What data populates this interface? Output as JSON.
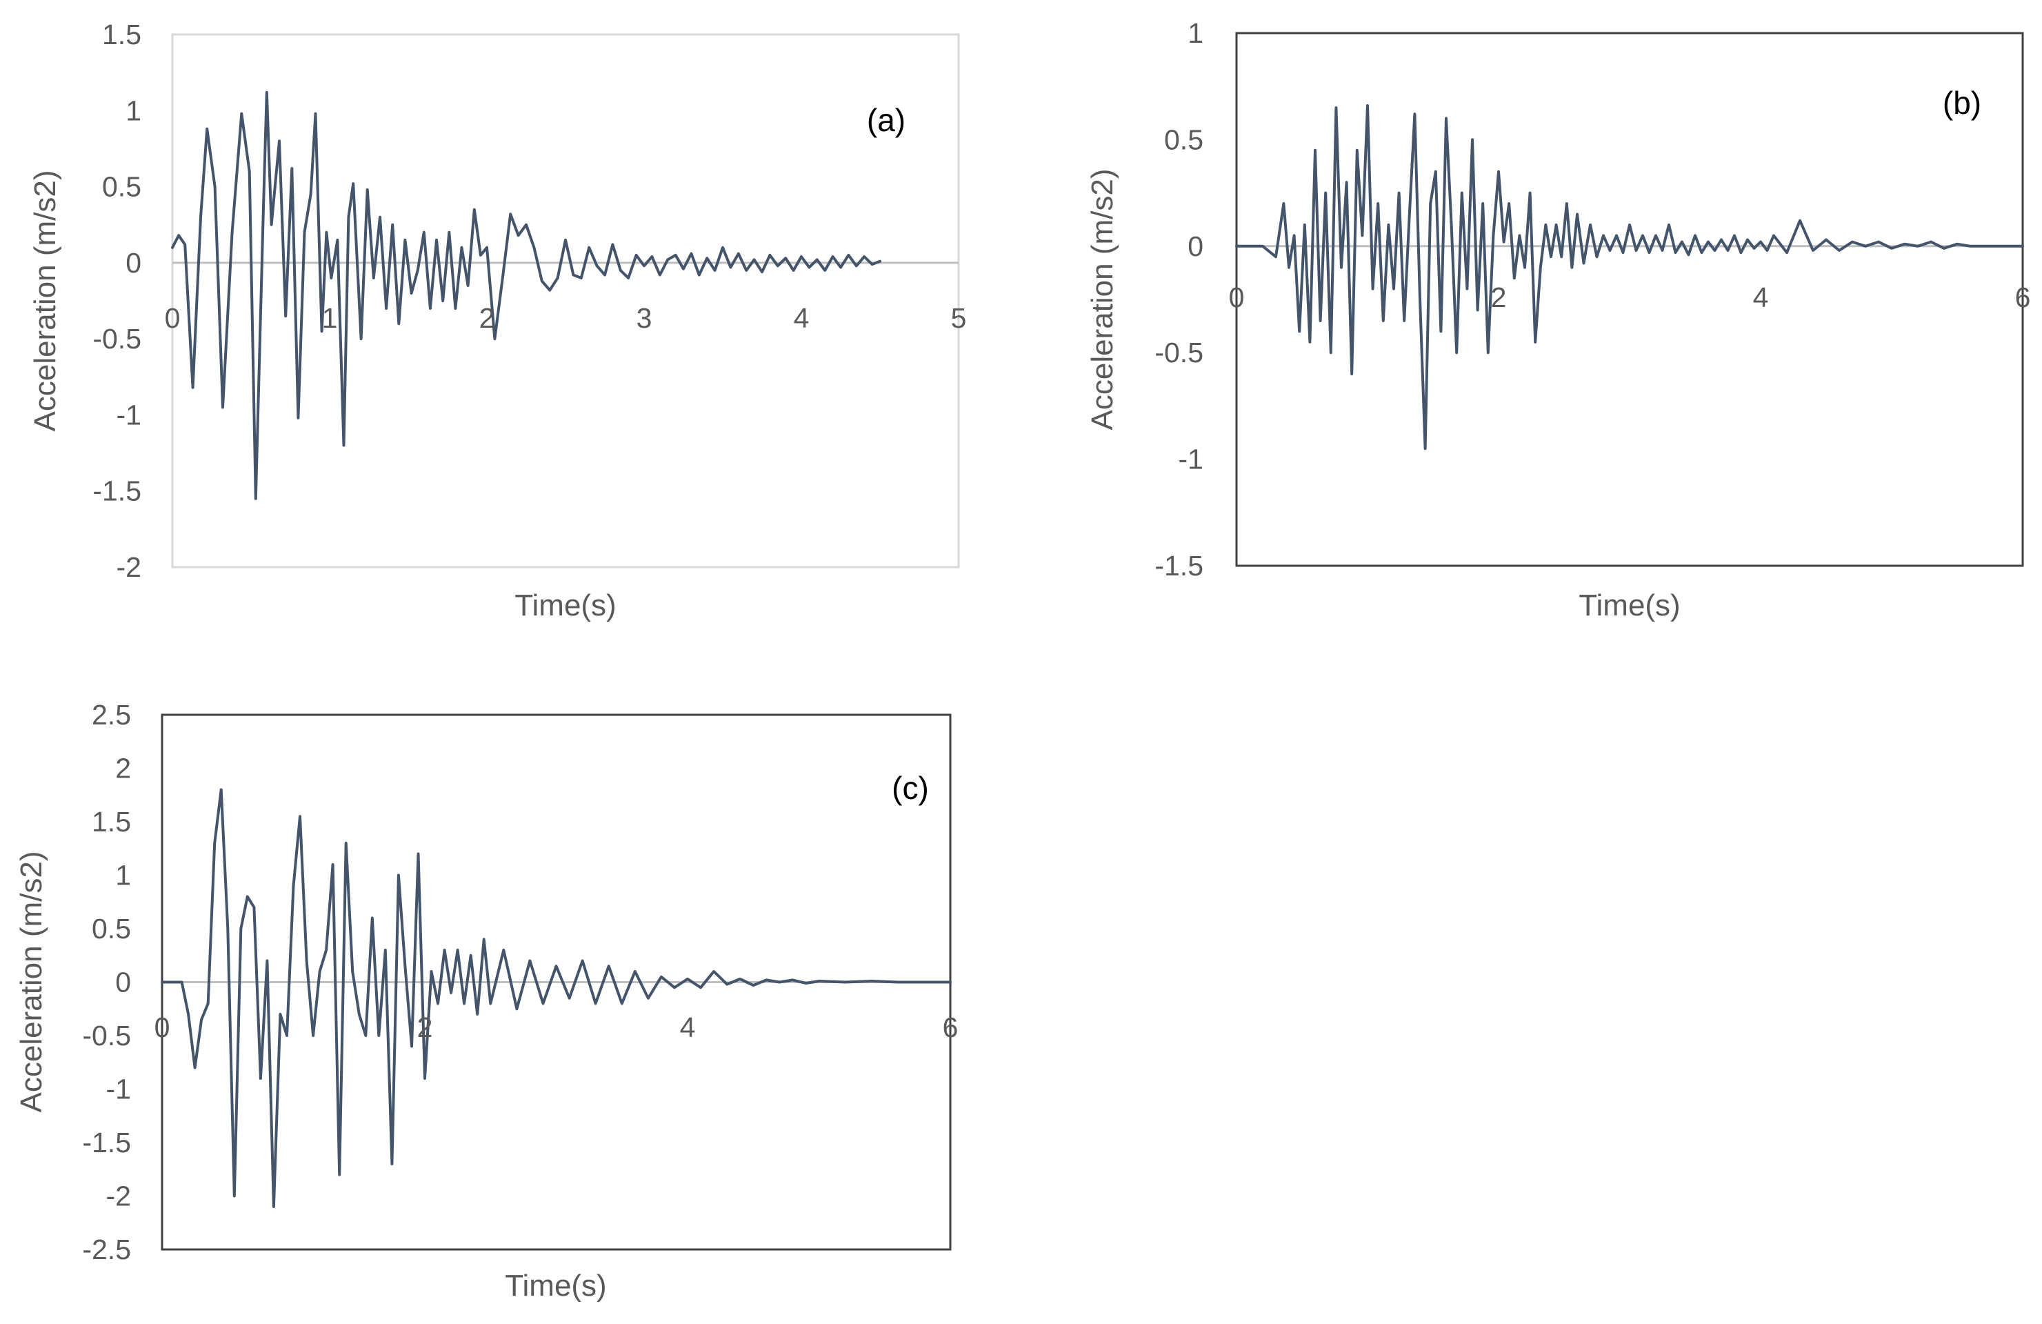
{
  "colors": {
    "series": "#44546a",
    "axis": "#bfbfbf",
    "frame_light": "#d9d9d9",
    "frame_dark": "#404040",
    "text": "#595959"
  },
  "chart_data": [
    {
      "type": "line",
      "panel_label": "(a)",
      "xlabel": "Time(s)",
      "ylabel": "Acceleration (m/s2)",
      "xlim": [
        0,
        5
      ],
      "ylim": [
        -2,
        1.5
      ],
      "x_ticks": [
        "0",
        "1",
        "2",
        "3",
        "4",
        "5"
      ],
      "y_ticks": [
        "1.5",
        "1",
        "0.5",
        "0",
        "-0.5",
        "-1",
        "-1.5",
        "-2"
      ],
      "x_tick_values": [
        0,
        1,
        2,
        3,
        4,
        5
      ],
      "y_tick_values": [
        1.5,
        1,
        0.5,
        0,
        -0.5,
        -1,
        -1.5,
        -2
      ],
      "series": [
        {
          "name": "Acceleration",
          "x": [
            0,
            0.04,
            0.08,
            0.13,
            0.18,
            0.22,
            0.27,
            0.32,
            0.38,
            0.44,
            0.49,
            0.53,
            0.58,
            0.6,
            0.63,
            0.68,
            0.72,
            0.76,
            0.8,
            0.84,
            0.88,
            0.91,
            0.95,
            0.98,
            1.01,
            1.05,
            1.09,
            1.12,
            1.15,
            1.2,
            1.24,
            1.28,
            1.32,
            1.36,
            1.4,
            1.44,
            1.48,
            1.52,
            1.56,
            1.6,
            1.64,
            1.68,
            1.72,
            1.76,
            1.8,
            1.84,
            1.88,
            1.92,
            1.96,
            2,
            2.05,
            2.1,
            2.15,
            2.2,
            2.25,
            2.3,
            2.35,
            2.4,
            2.45,
            2.5,
            2.55,
            2.6,
            2.65,
            2.7,
            2.75,
            2.8,
            2.85,
            2.9,
            2.95,
            3,
            3.05,
            3.1,
            3.15,
            3.2,
            3.25,
            3.3,
            3.35,
            3.4,
            3.45,
            3.5,
            3.55,
            3.6,
            3.65,
            3.7,
            3.75,
            3.8,
            3.85,
            3.9,
            3.95,
            4,
            4.05,
            4.1,
            4.15,
            4.2,
            4.25,
            4.3,
            4.35,
            4.4,
            4.45,
            4.5
          ],
          "values": [
            0.1,
            0.18,
            0.12,
            -0.82,
            0.3,
            0.88,
            0.5,
            -0.95,
            0.2,
            0.98,
            0.6,
            -1.55,
            0.4,
            1.12,
            0.25,
            0.8,
            -0.35,
            0.62,
            -1.02,
            0.2,
            0.45,
            0.98,
            -0.45,
            0.2,
            -0.1,
            0.15,
            -1.2,
            0.3,
            0.52,
            -0.5,
            0.48,
            -0.1,
            0.3,
            -0.3,
            0.25,
            -0.4,
            0.15,
            -0.2,
            -0.05,
            0.2,
            -0.3,
            0.15,
            -0.25,
            0.2,
            -0.3,
            0.1,
            -0.15,
            0.35,
            0.05,
            0.1,
            -0.5,
            -0.1,
            0.32,
            0.18,
            0.25,
            0.1,
            -0.12,
            -0.18,
            -0.1,
            0.15,
            -0.08,
            -0.1,
            0.1,
            -0.02,
            -0.08,
            0.12,
            -0.05,
            -0.1,
            0.05,
            -0.02,
            0.04,
            -0.08,
            0.02,
            0.05,
            -0.04,
            0.06,
            -0.08,
            0.03,
            -0.05,
            0.1,
            -0.03,
            0.06,
            -0.05,
            0.02,
            -0.06,
            0.05,
            -0.02,
            0.03,
            -0.05,
            0.04,
            -0.03,
            0.02,
            -0.05,
            0.04,
            -0.03,
            0.05,
            -0.02,
            0.04,
            -0.01,
            0.01
          ]
        }
      ]
    },
    {
      "type": "line",
      "panel_label": "(b)",
      "xlabel": "Time(s)",
      "ylabel": "Acceleration (m/s2)",
      "xlim": [
        0,
        6
      ],
      "ylim": [
        -1.5,
        1
      ],
      "x_ticks": [
        "0",
        "2",
        "4",
        "6"
      ],
      "y_ticks": [
        "1",
        "0.5",
        "0",
        "-0.5",
        "-1",
        "-1.5"
      ],
      "x_tick_values": [
        0,
        2,
        4,
        6
      ],
      "y_tick_values": [
        1,
        0.5,
        0,
        -0.5,
        -1,
        -1.5
      ],
      "series": [
        {
          "name": "Acceleration",
          "x": [
            0,
            0.2,
            0.3,
            0.36,
            0.4,
            0.44,
            0.48,
            0.52,
            0.56,
            0.6,
            0.64,
            0.68,
            0.72,
            0.76,
            0.8,
            0.84,
            0.88,
            0.92,
            0.96,
            1,
            1.04,
            1.08,
            1.12,
            1.16,
            1.2,
            1.24,
            1.28,
            1.32,
            1.36,
            1.4,
            1.44,
            1.48,
            1.52,
            1.56,
            1.6,
            1.64,
            1.68,
            1.72,
            1.76,
            1.8,
            1.84,
            1.88,
            1.92,
            1.96,
            2,
            2.04,
            2.08,
            2.12,
            2.16,
            2.2,
            2.24,
            2.28,
            2.32,
            2.36,
            2.4,
            2.44,
            2.48,
            2.52,
            2.56,
            2.6,
            2.65,
            2.7,
            2.75,
            2.8,
            2.85,
            2.9,
            2.95,
            3,
            3.05,
            3.1,
            3.15,
            3.2,
            3.25,
            3.3,
            3.35,
            3.4,
            3.45,
            3.5,
            3.55,
            3.6,
            3.65,
            3.7,
            3.75,
            3.8,
            3.85,
            3.9,
            3.95,
            4,
            4.05,
            4.1,
            4.2,
            4.3,
            4.4,
            4.5,
            4.6,
            4.7,
            4.8,
            4.9,
            5,
            5.1,
            5.2,
            5.3,
            5.4,
            5.5,
            5.6,
            5.8,
            6
          ],
          "values": [
            0,
            0,
            -0.05,
            0.2,
            -0.1,
            0.05,
            -0.4,
            0.1,
            -0.45,
            0.45,
            -0.35,
            0.25,
            -0.5,
            0.65,
            -0.1,
            0.3,
            -0.6,
            0.45,
            0.05,
            0.66,
            -0.2,
            0.2,
            -0.35,
            0.1,
            -0.2,
            0.25,
            -0.35,
            0.15,
            0.62,
            -0.25,
            -0.95,
            0.2,
            0.35,
            -0.4,
            0.6,
            0.1,
            -0.5,
            0.25,
            -0.2,
            0.5,
            -0.3,
            0.2,
            -0.5,
            0.05,
            0.35,
            0.02,
            0.2,
            -0.15,
            0.05,
            -0.1,
            0.25,
            -0.45,
            -0.1,
            0.1,
            -0.05,
            0.1,
            -0.05,
            0.2,
            -0.1,
            0.15,
            -0.08,
            0.1,
            -0.05,
            0.05,
            -0.02,
            0.05,
            -0.03,
            0.1,
            -0.02,
            0.05,
            -0.03,
            0.05,
            -0.02,
            0.1,
            -0.03,
            0.02,
            -0.04,
            0.05,
            -0.03,
            0.02,
            -0.02,
            0.03,
            -0.02,
            0.05,
            -0.03,
            0.03,
            -0.01,
            0.02,
            -0.02,
            0.05,
            -0.03,
            0.12,
            -0.02,
            0.03,
            -0.02,
            0.02,
            0,
            0.02,
            -0.01,
            0.01,
            0,
            0.02,
            -0.01,
            0.01,
            0,
            0,
            0
          ]
        }
      ]
    },
    {
      "type": "line",
      "panel_label": "(c)",
      "xlabel": "Time(s)",
      "ylabel": "Acceleration (m/s2)",
      "xlim": [
        0,
        6
      ],
      "ylim": [
        -2.5,
        2.5
      ],
      "x_ticks": [
        "0",
        "2",
        "4",
        "6"
      ],
      "y_ticks": [
        "2.5",
        "2",
        "1.5",
        "1",
        "0.5",
        "0",
        "-0.5",
        "-1",
        "-1.5",
        "-2",
        "-2.5"
      ],
      "x_tick_values": [
        0,
        2,
        4,
        6
      ],
      "y_tick_values": [
        2.5,
        2,
        1.5,
        1,
        0.5,
        0,
        -0.5,
        -1,
        -1.5,
        -2,
        -2.5
      ],
      "series": [
        {
          "name": "Acceleration",
          "x": [
            0,
            0.15,
            0.2,
            0.25,
            0.3,
            0.35,
            0.4,
            0.45,
            0.5,
            0.55,
            0.6,
            0.65,
            0.7,
            0.75,
            0.8,
            0.85,
            0.9,
            0.95,
            1,
            1.05,
            1.1,
            1.15,
            1.2,
            1.25,
            1.3,
            1.35,
            1.4,
            1.45,
            1.5,
            1.55,
            1.6,
            1.65,
            1.7,
            1.75,
            1.8,
            1.85,
            1.9,
            1.95,
            2,
            2.05,
            2.1,
            2.15,
            2.2,
            2.25,
            2.3,
            2.35,
            2.4,
            2.45,
            2.5,
            2.6,
            2.7,
            2.8,
            2.9,
            3,
            3.1,
            3.2,
            3.3,
            3.4,
            3.5,
            3.6,
            3.7,
            3.8,
            3.9,
            4,
            4.1,
            4.2,
            4.3,
            4.4,
            4.5,
            4.6,
            4.7,
            4.8,
            4.9,
            5,
            5.2,
            5.4,
            5.6,
            5.8,
            6
          ],
          "values": [
            0,
            0,
            -0.3,
            -0.8,
            -0.35,
            -0.2,
            1.3,
            1.8,
            0.5,
            -2,
            0.5,
            0.8,
            0.7,
            -0.9,
            0.2,
            -2.1,
            -0.3,
            -0.5,
            0.9,
            1.55,
            0.2,
            -0.5,
            0.1,
            0.3,
            1.1,
            -1.8,
            1.3,
            0.1,
            -0.3,
            -0.5,
            0.6,
            -0.5,
            0.3,
            -1.7,
            1.0,
            0.15,
            -0.6,
            1.2,
            -0.9,
            0.1,
            -0.2,
            0.3,
            -0.1,
            0.3,
            -0.2,
            0.25,
            -0.3,
            0.4,
            -0.2,
            0.3,
            -0.25,
            0.2,
            -0.2,
            0.15,
            -0.15,
            0.2,
            -0.2,
            0.15,
            -0.2,
            0.1,
            -0.15,
            0.05,
            -0.05,
            0.03,
            -0.05,
            0.1,
            -0.02,
            0.03,
            -0.03,
            0.02,
            0,
            0.02,
            -0.01,
            0.01,
            0,
            0.01,
            0,
            0,
            0
          ]
        }
      ]
    }
  ]
}
